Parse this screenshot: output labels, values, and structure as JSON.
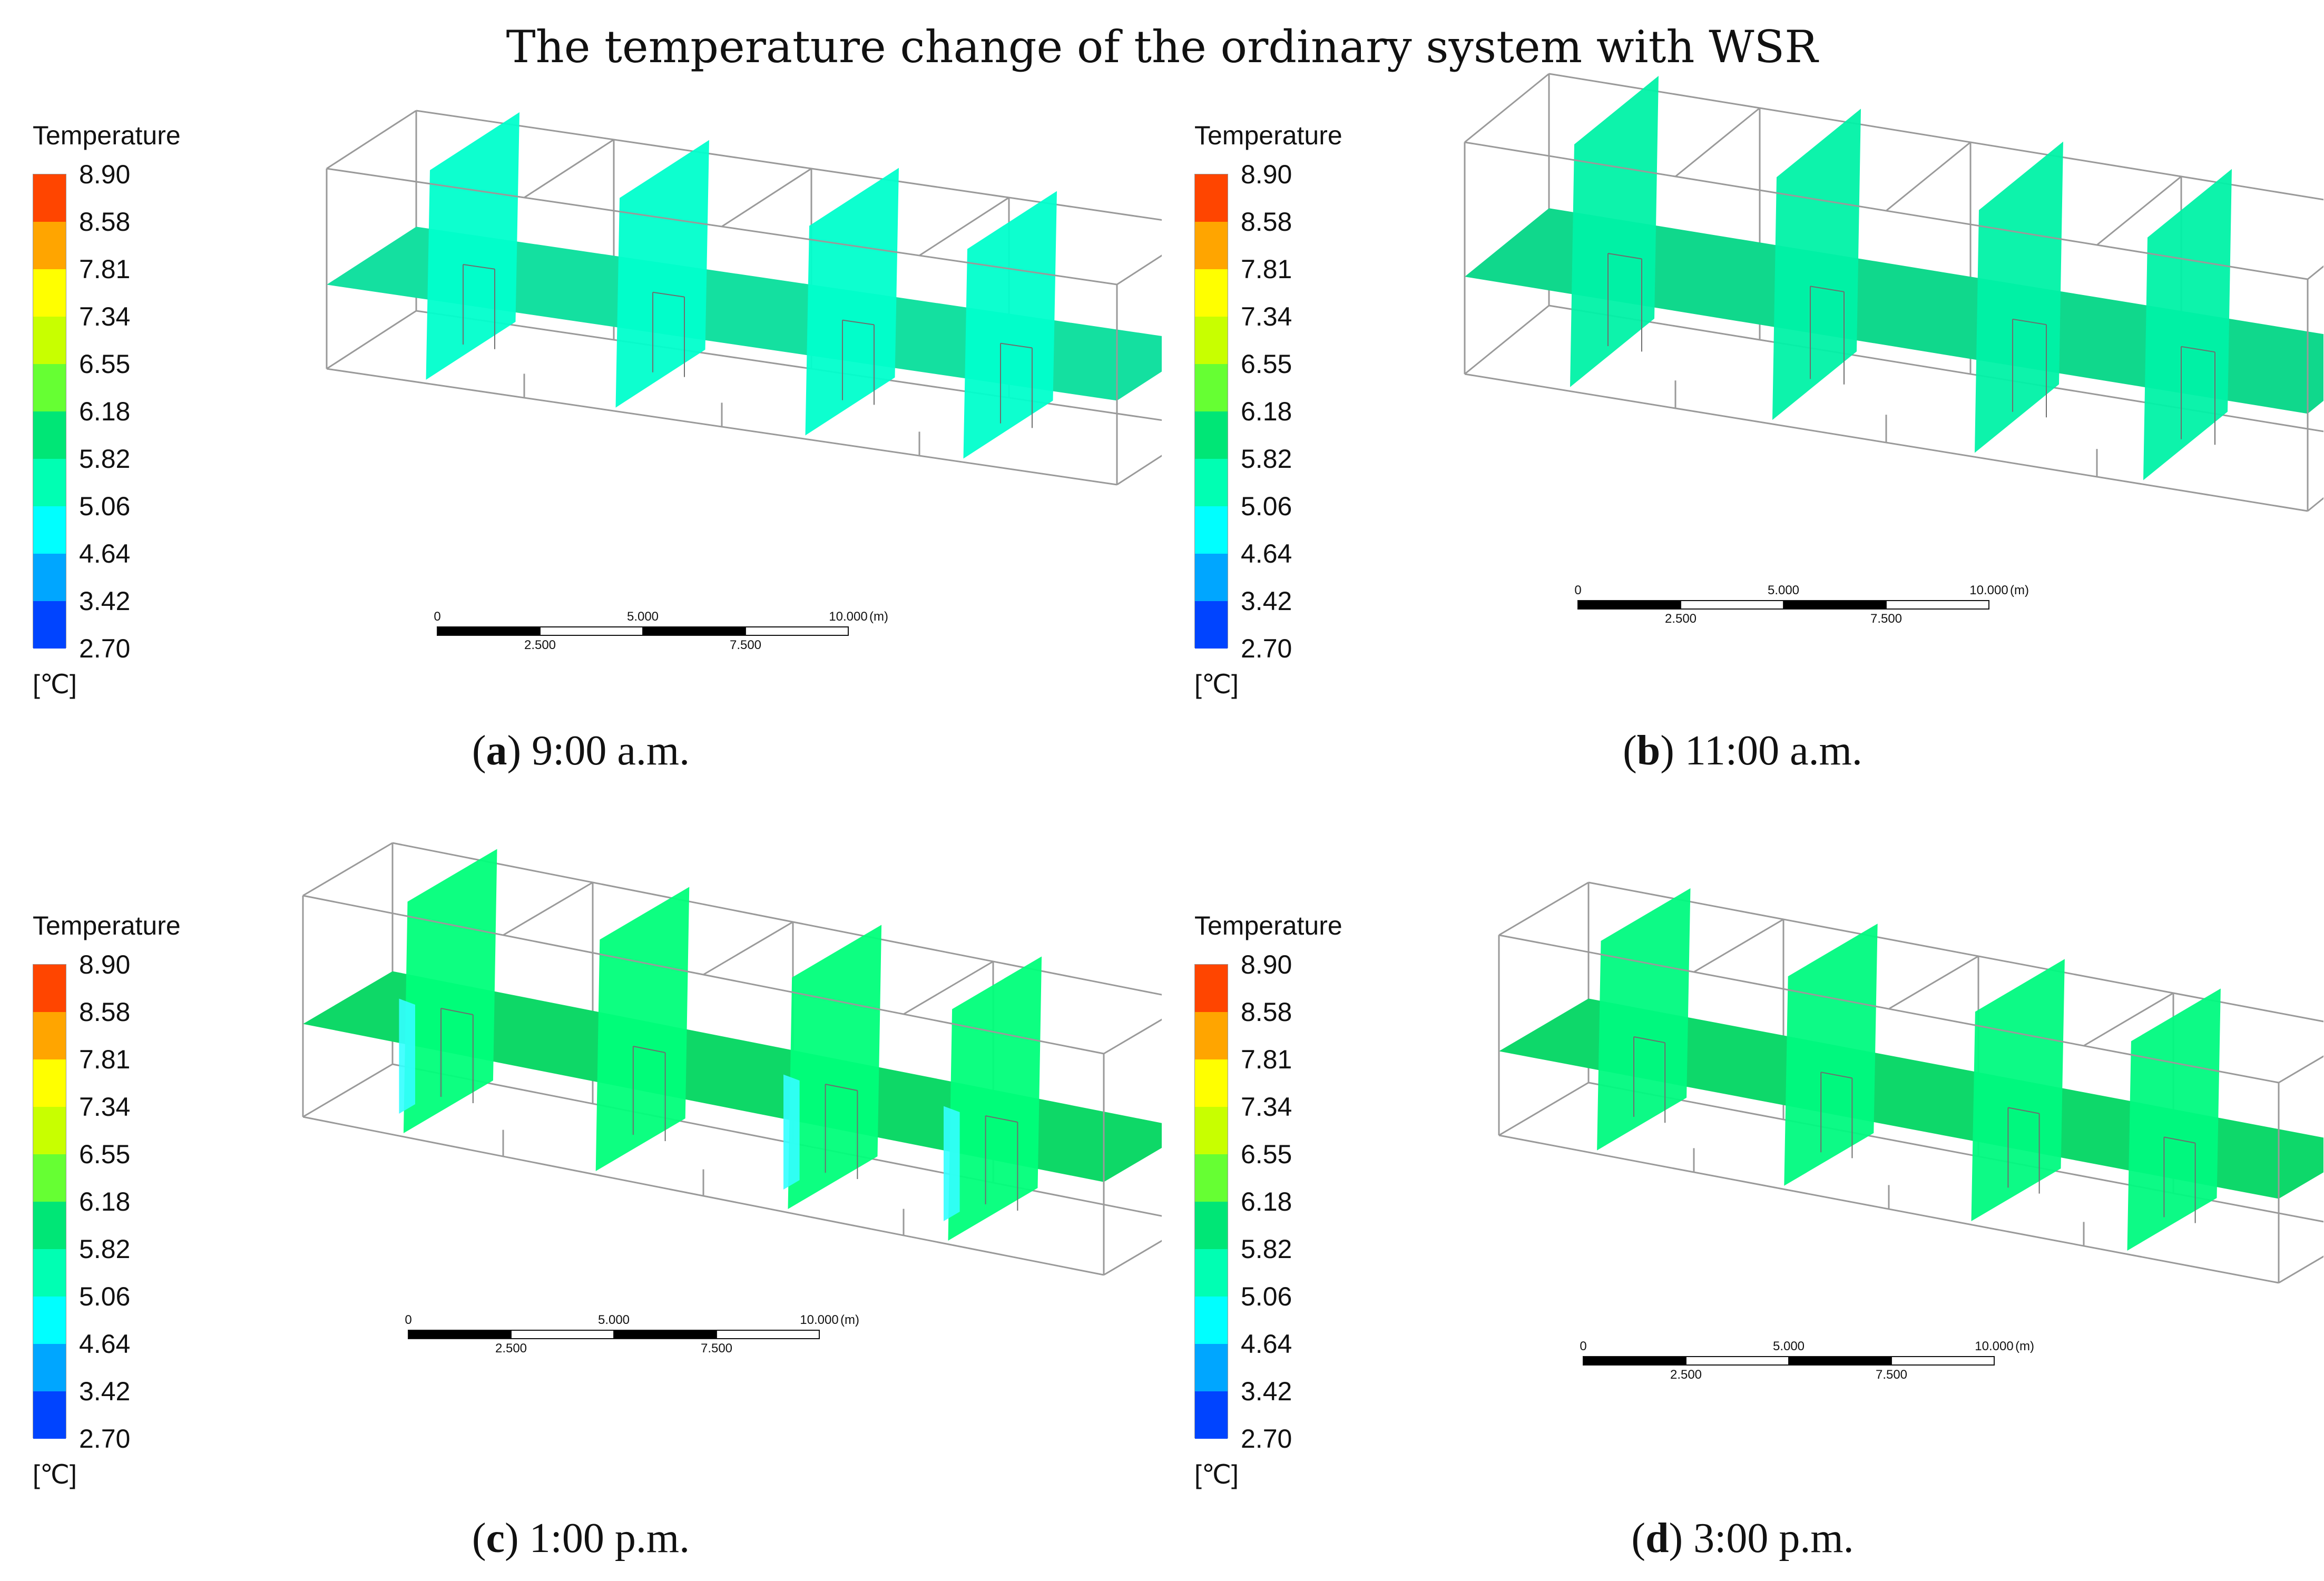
{
  "title": "The temperature change of the ordinary system with WSR",
  "legend": {
    "title": "Temperature",
    "unit": "[℃]",
    "levels": [
      "8.90",
      "8.58",
      "7.81",
      "7.34",
      "6.55",
      "6.18",
      "5.82",
      "5.06",
      "4.64",
      "3.42",
      "2.70"
    ],
    "colors": [
      "#ff4500",
      "#ffa500",
      "#ffff00",
      "#c8ff00",
      "#66ff33",
      "#00e676",
      "#00ffb3",
      "#00ffff",
      "#00a6ff",
      "#0044ff"
    ]
  },
  "scale_bar": {
    "top_labels": [
      "0",
      "5.000",
      "10.000",
      "(m)"
    ],
    "bottom_labels": [
      "2.500",
      "7.500"
    ]
  },
  "panels": [
    {
      "letter": "a",
      "time": " 9:00 a.m.",
      "plane_color": "#00ffcc",
      "floor_color": "#14e0a0",
      "cold_spots": false
    },
    {
      "letter": "b",
      "time": " 11:00 a.m.",
      "plane_color": "#00f2a6",
      "floor_color": "#10d88c",
      "cold_spots": false
    },
    {
      "letter": "c",
      "time": " 1:00 p.m.",
      "plane_color": "#00ff7a",
      "floor_color": "#0ed867",
      "cold_spots": true
    },
    {
      "letter": "d",
      "time": " 3:00 p.m.",
      "plane_color": "#00fa80",
      "floor_color": "#0ed86a",
      "cold_spots": false
    }
  ]
}
